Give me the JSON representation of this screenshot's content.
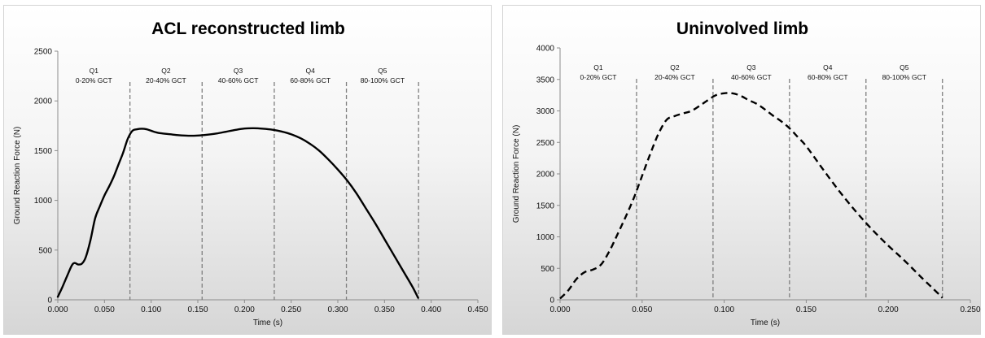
{
  "chart_data": [
    {
      "type": "line",
      "title": "ACL reconstructed limb",
      "xlabel": "Time (s)",
      "ylabel": "Ground Reaction Force (N)",
      "xlim": [
        0,
        0.45
      ],
      "ylim": [
        0,
        2500
      ],
      "xticks": [
        "0.000",
        "0.050",
        "0.100",
        "0.150",
        "0.200",
        "0.250",
        "0.300",
        "0.350",
        "0.400",
        "0.450"
      ],
      "yticks": [
        "0",
        "500",
        "1000",
        "1500",
        "2000",
        "2500"
      ],
      "grid": false,
      "legend": "none",
      "line_style": "solid",
      "line_color": "#000000",
      "quintiles": [
        {
          "name": "Q1",
          "range": "0-20% GCT",
          "end_x": 0.0773
        },
        {
          "name": "Q2",
          "range": "20-40% GCT",
          "end_x": 0.1546
        },
        {
          "name": "Q3",
          "range": "40-60% GCT",
          "end_x": 0.2319
        },
        {
          "name": "Q4",
          "range": "60-80% GCT",
          "end_x": 0.3092
        },
        {
          "name": "Q5",
          "range": "80-100% GCT",
          "end_x": 0.3865
        }
      ],
      "series": [
        {
          "x": [
            0.0,
            0.005,
            0.01,
            0.015,
            0.018,
            0.022,
            0.026,
            0.03,
            0.035,
            0.04,
            0.045,
            0.05,
            0.055,
            0.06,
            0.065,
            0.07,
            0.075,
            0.08,
            0.085,
            0.09,
            0.095,
            0.1,
            0.105,
            0.11,
            0.12,
            0.13,
            0.14,
            0.15,
            0.16,
            0.17,
            0.18,
            0.19,
            0.2,
            0.21,
            0.22,
            0.23,
            0.24,
            0.25,
            0.26,
            0.27,
            0.28,
            0.29,
            0.3,
            0.31,
            0.32,
            0.33,
            0.34,
            0.35,
            0.36,
            0.37,
            0.38,
            0.386
          ],
          "y": [
            30,
            130,
            240,
            345,
            370,
            355,
            365,
            430,
            600,
            820,
            940,
            1050,
            1140,
            1240,
            1360,
            1480,
            1620,
            1700,
            1715,
            1720,
            1715,
            1700,
            1685,
            1675,
            1665,
            1655,
            1650,
            1652,
            1660,
            1672,
            1690,
            1708,
            1722,
            1725,
            1720,
            1710,
            1692,
            1665,
            1625,
            1570,
            1500,
            1410,
            1310,
            1200,
            1070,
            920,
            770,
            610,
            450,
            290,
            130,
            20
          ]
        }
      ]
    },
    {
      "type": "line",
      "title": "Uninvolved limb",
      "xlabel": "Time (s)",
      "ylabel": "Ground Reaction Force (N)",
      "xlim": [
        0,
        0.25
      ],
      "ylim": [
        0,
        4000
      ],
      "xticks": [
        "0.000",
        "0.050",
        "0.100",
        "0.150",
        "0.200",
        "0.250"
      ],
      "yticks": [
        "0",
        "500",
        "1000",
        "1500",
        "2000",
        "2500",
        "3000",
        "3500",
        "4000"
      ],
      "grid": false,
      "legend": "none",
      "line_style": "dashed",
      "line_color": "#000000",
      "quintiles": [
        {
          "name": "Q1",
          "range": "0-20% GCT",
          "end_x": 0.0466
        },
        {
          "name": "Q2",
          "range": "20-40% GCT",
          "end_x": 0.0932
        },
        {
          "name": "Q3",
          "range": "40-60% GCT",
          "end_x": 0.1398
        },
        {
          "name": "Q4",
          "range": "60-80% GCT",
          "end_x": 0.1864
        },
        {
          "name": "Q5",
          "range": "80-100% GCT",
          "end_x": 0.233
        }
      ],
      "series": [
        {
          "x": [
            0.0,
            0.005,
            0.01,
            0.015,
            0.02,
            0.025,
            0.03,
            0.035,
            0.04,
            0.045,
            0.05,
            0.055,
            0.06,
            0.065,
            0.07,
            0.075,
            0.08,
            0.085,
            0.09,
            0.095,
            0.1,
            0.105,
            0.11,
            0.115,
            0.12,
            0.125,
            0.13,
            0.135,
            0.14,
            0.145,
            0.15,
            0.16,
            0.17,
            0.18,
            0.19,
            0.2,
            0.21,
            0.22,
            0.23,
            0.233
          ],
          "y": [
            20,
            150,
            330,
            440,
            480,
            560,
            770,
            1040,
            1320,
            1620,
            1970,
            2320,
            2640,
            2860,
            2920,
            2960,
            3000,
            3080,
            3170,
            3250,
            3280,
            3280,
            3240,
            3170,
            3110,
            3020,
            2920,
            2830,
            2720,
            2580,
            2440,
            2080,
            1730,
            1410,
            1120,
            860,
            620,
            360,
            110,
            30
          ]
        }
      ]
    }
  ]
}
